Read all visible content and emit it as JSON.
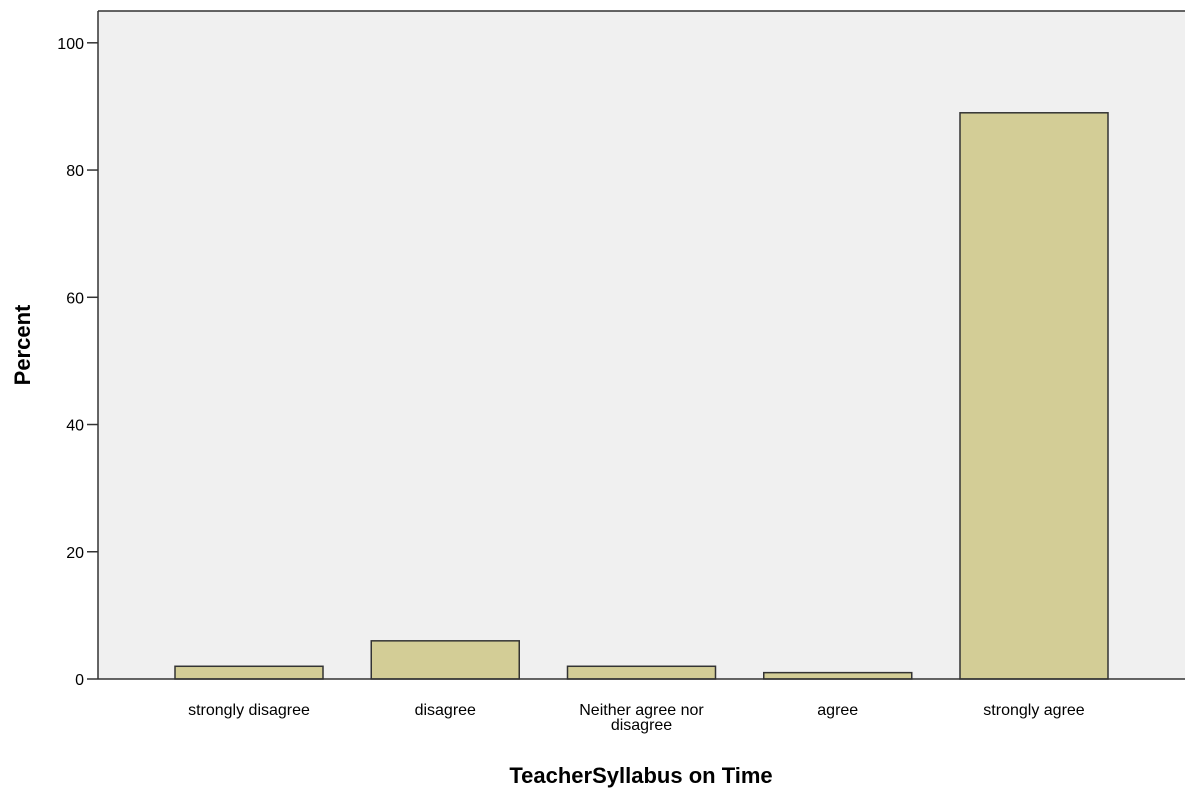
{
  "chart_data": {
    "type": "bar",
    "categories": [
      [
        "strongly disagree"
      ],
      [
        "disagree"
      ],
      [
        "Neither agree nor",
        "disagree"
      ],
      [
        "agree"
      ],
      [
        "strongly agree"
      ]
    ],
    "values": [
      2,
      6,
      2,
      1,
      89
    ],
    "xlabel": "TeacherSyllabus on Time",
    "ylabel": "Percent",
    "ylim": [
      0,
      105
    ],
    "yticks": [
      0,
      20,
      40,
      60,
      80,
      100
    ],
    "grid": false,
    "bar_color": "#d3cd96",
    "bar_edge_color": "#333333",
    "plot_background": "#f0f0f0"
  }
}
